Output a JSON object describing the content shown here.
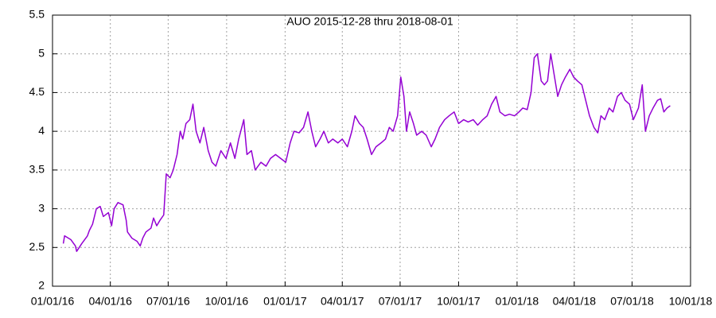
{
  "chart_data": {
    "type": "line",
    "title": "AUO 2015-12-28 thru 2018-08-01",
    "x": [
      "2016-01-18",
      "2016-01-20",
      "2016-01-30",
      "2016-02-06",
      "2016-02-08",
      "2016-02-16",
      "2016-02-25",
      "2016-02-28",
      "2016-03-04",
      "2016-03-10",
      "2016-03-16",
      "2016-03-21",
      "2016-03-29",
      "2016-04-03",
      "2016-04-07",
      "2016-04-13",
      "2016-04-21",
      "2016-04-26",
      "2016-04-28",
      "2016-05-05",
      "2016-05-13",
      "2016-05-18",
      "2016-05-22",
      "2016-05-27",
      "2016-06-04",
      "2016-06-08",
      "2016-06-13",
      "2016-06-18",
      "2016-06-24",
      "2016-06-28",
      "2016-07-04",
      "2016-07-09",
      "2016-07-15",
      "2016-07-20",
      "2016-07-24",
      "2016-07-29",
      "2016-08-04",
      "2016-08-09",
      "2016-08-14",
      "2016-08-20",
      "2016-08-26",
      "2016-09-02",
      "2016-09-08",
      "2016-09-14",
      "2016-09-22",
      "2016-09-30",
      "2016-10-07",
      "2016-10-14",
      "2016-10-20",
      "2016-10-28",
      "2016-11-02",
      "2016-11-09",
      "2016-11-15",
      "2016-11-24",
      "2016-12-02",
      "2016-12-09",
      "2016-12-17",
      "2016-12-25",
      "2017-01-02",
      "2017-01-09",
      "2017-01-15",
      "2017-01-23",
      "2017-01-30",
      "2017-02-06",
      "2017-02-12",
      "2017-02-18",
      "2017-02-25",
      "2017-03-03",
      "2017-03-10",
      "2017-03-17",
      "2017-03-25",
      "2017-04-01",
      "2017-04-09",
      "2017-04-16",
      "2017-04-21",
      "2017-04-28",
      "2017-05-04",
      "2017-05-10",
      "2017-05-17",
      "2017-05-24",
      "2017-06-01",
      "2017-06-08",
      "2017-06-14",
      "2017-06-20",
      "2017-06-27",
      "2017-07-02",
      "2017-07-07",
      "2017-07-11",
      "2017-07-16",
      "2017-07-22",
      "2017-07-27",
      "2017-08-04",
      "2017-08-11",
      "2017-08-19",
      "2017-08-25",
      "2017-09-01",
      "2017-09-09",
      "2017-09-16",
      "2017-09-24",
      "2017-10-01",
      "2017-10-09",
      "2017-10-16",
      "2017-10-24",
      "2017-10-31",
      "2017-11-08",
      "2017-11-15",
      "2017-11-22",
      "2017-11-29",
      "2017-12-05",
      "2017-12-13",
      "2017-12-20",
      "2017-12-28",
      "2018-01-04",
      "2018-01-10",
      "2018-01-17",
      "2018-01-23",
      "2018-01-28",
      "2018-02-02",
      "2018-02-08",
      "2018-02-13",
      "2018-02-18",
      "2018-02-23",
      "2018-03-01",
      "2018-03-06",
      "2018-03-12",
      "2018-03-18",
      "2018-03-25",
      "2018-03-31",
      "2018-04-06",
      "2018-04-13",
      "2018-04-19",
      "2018-04-25",
      "2018-05-02",
      "2018-05-08",
      "2018-05-13",
      "2018-05-19",
      "2018-05-26",
      "2018-06-01",
      "2018-06-08",
      "2018-06-14",
      "2018-06-20",
      "2018-06-27",
      "2018-07-03",
      "2018-07-11",
      "2018-07-17",
      "2018-07-22",
      "2018-07-28",
      "2018-08-03",
      "2018-08-10",
      "2018-08-15",
      "2018-08-20",
      "2018-08-25",
      "2018-08-30"
    ],
    "series": [
      {
        "color": "#9400d3",
        "values": [
          2.55,
          2.65,
          2.6,
          2.52,
          2.45,
          2.55,
          2.65,
          2.72,
          2.8,
          3.0,
          3.03,
          2.9,
          2.95,
          2.78,
          3.0,
          3.08,
          3.05,
          2.85,
          2.7,
          2.62,
          2.58,
          2.52,
          2.62,
          2.7,
          2.75,
          2.88,
          2.78,
          2.85,
          2.92,
          3.45,
          3.4,
          3.5,
          3.7,
          4.0,
          3.9,
          4.1,
          4.15,
          4.35,
          4.0,
          3.85,
          4.05,
          3.75,
          3.6,
          3.55,
          3.75,
          3.65,
          3.85,
          3.65,
          3.9,
          4.15,
          3.7,
          3.75,
          3.5,
          3.6,
          3.55,
          3.65,
          3.7,
          3.65,
          3.6,
          3.85,
          4.0,
          3.98,
          4.05,
          4.25,
          4.0,
          3.8,
          3.9,
          4.0,
          3.85,
          3.9,
          3.85,
          3.9,
          3.8,
          4.0,
          4.2,
          4.1,
          4.05,
          3.9,
          3.7,
          3.8,
          3.85,
          3.9,
          4.05,
          4.0,
          4.2,
          4.7,
          4.45,
          4.0,
          4.25,
          4.1,
          3.95,
          4.0,
          3.95,
          3.8,
          3.9,
          4.05,
          4.15,
          4.2,
          4.25,
          4.1,
          4.15,
          4.12,
          4.15,
          4.08,
          4.15,
          4.2,
          4.35,
          4.45,
          4.25,
          4.2,
          4.22,
          4.2,
          4.25,
          4.3,
          4.28,
          4.5,
          4.95,
          5.0,
          4.65,
          4.6,
          4.65,
          5.0,
          4.7,
          4.45,
          4.6,
          4.7,
          4.8,
          4.7,
          4.65,
          4.6,
          4.4,
          4.2,
          4.05,
          3.98,
          4.2,
          4.15,
          4.3,
          4.25,
          4.45,
          4.5,
          4.4,
          4.35,
          4.15,
          4.3,
          4.6,
          4.0,
          4.2,
          4.3,
          4.4,
          4.42,
          4.25,
          4.3,
          4.33
        ]
      }
    ],
    "xlim": [
      "2016-01-01",
      "2018-10-01"
    ],
    "xticks": [
      {
        "value": "2016-01-01",
        "label": "01/01/16"
      },
      {
        "value": "2016-04-01",
        "label": "04/01/16"
      },
      {
        "value": "2016-07-01",
        "label": "07/01/16"
      },
      {
        "value": "2016-10-01",
        "label": "10/01/16"
      },
      {
        "value": "2017-01-01",
        "label": "01/01/17"
      },
      {
        "value": "2017-04-01",
        "label": "04/01/17"
      },
      {
        "value": "2017-07-01",
        "label": "07/01/17"
      },
      {
        "value": "2017-10-01",
        "label": "10/01/17"
      },
      {
        "value": "2018-01-01",
        "label": "01/01/18"
      },
      {
        "value": "2018-04-01",
        "label": "04/01/18"
      },
      {
        "value": "2018-07-01",
        "label": "07/01/18"
      },
      {
        "value": "2018-10-01",
        "label": "10/01/18"
      }
    ],
    "ylim": [
      2,
      5.5
    ],
    "yticks": [
      2,
      2.5,
      3,
      3.5,
      4,
      4.5,
      5,
      5.5
    ],
    "grid": true
  }
}
